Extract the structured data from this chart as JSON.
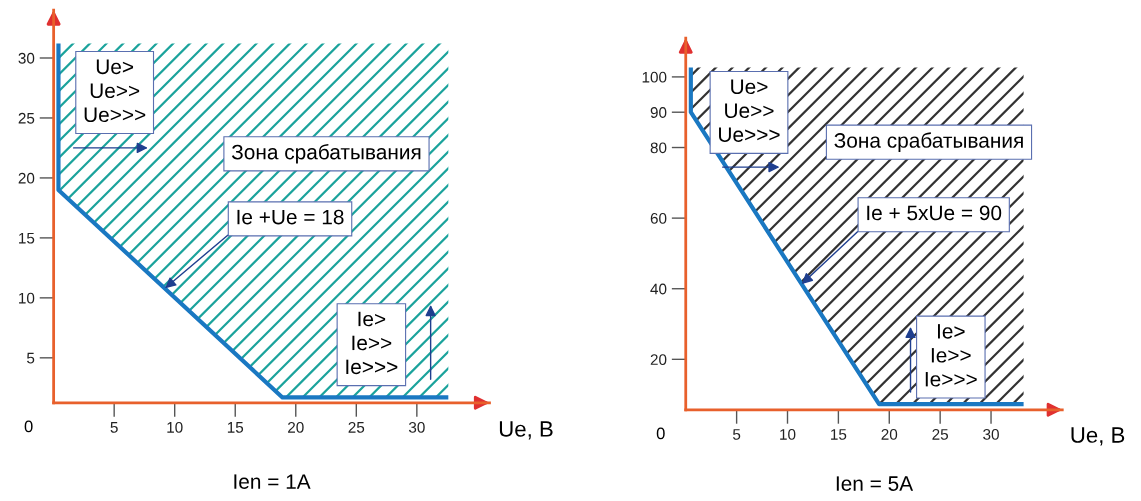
{
  "chart_data": [
    {
      "type": "line",
      "title": "Ien = 1A",
      "xlabel": "Ue, B",
      "xlim": [
        0,
        36
      ],
      "ylim": [
        1.25,
        34
      ],
      "xticks": [
        5,
        10,
        15,
        20,
        25,
        30
      ],
      "yticks": [
        5,
        10,
        15,
        20,
        25,
        30
      ],
      "grid": false,
      "legend": false,
      "series": [
        {
          "type": "line",
          "color": "#1a78c2",
          "x": [
            0.4,
            0.4,
            18.9,
            32.6
          ],
          "values": [
            31.2,
            19,
            1.7,
            1.7
          ]
        }
      ],
      "annotations": [
        "0",
        "Ue>\nUe>>\nUe>>>",
        "Зона срабатывания",
        {
          "text": "Ie +Ue = 18",
          "x": 9.2,
          "y": 10.8
        },
        "Ie>\nIe>>\nIe>>>"
      ]
    },
    {
      "type": "line",
      "title": "Ien = 5A",
      "xlabel": "Ue, B",
      "xlim": [
        0,
        37
      ],
      "ylim": [
        5.7,
        111
      ],
      "xticks": [
        5,
        10,
        15,
        20,
        25,
        30
      ],
      "yticks": [
        20,
        40,
        60,
        80,
        90,
        100
      ],
      "grid": false,
      "legend": false,
      "series": [
        {
          "type": "line",
          "color": "#1a78c2",
          "x": [
            0.5,
            0.5,
            19,
            33.2
          ],
          "values": [
            102.7,
            90,
            7.3,
            7.3
          ]
        }
      ],
      "annotations": [
        "0",
        "Ue>\nUe>>\nUe>>>",
        "Зона срабатывания",
        {
          "text": "Ie + 5xUe = 90",
          "x": 11.4,
          "y": 41.3
        },
        "Ie>\nIe>>\nIe>>>"
      ]
    }
  ]
}
